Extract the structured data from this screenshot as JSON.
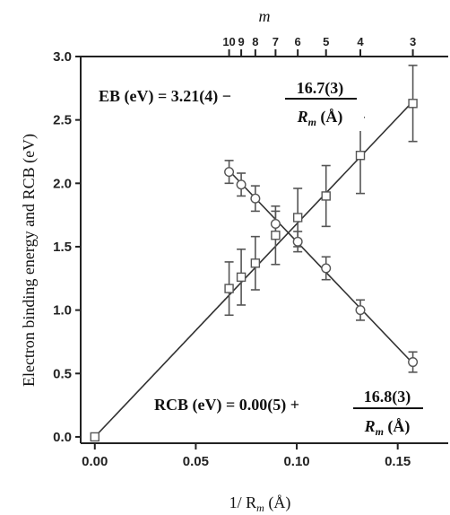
{
  "chart_data": {
    "type": "scatter",
    "title": "",
    "xlabel": "1/ R",
    "xlabel_sub": "m",
    "xlabel_unit": " (Å)",
    "ylabel": "Electron binding energy and RCB (eV)",
    "top_axis_label": "m",
    "xlim": [
      -0.007,
      0.175
    ],
    "ylim": [
      -0.05,
      3.0
    ],
    "x_ticks": [
      0.0,
      0.05,
      0.1,
      0.15
    ],
    "x_tick_labels": [
      "0.00",
      "0.05",
      "0.10",
      "0.15"
    ],
    "y_ticks": [
      0.0,
      0.5,
      1.0,
      1.5,
      2.0,
      2.5,
      3.0
    ],
    "y_tick_labels": [
      "0.0",
      "0.5",
      "1.0",
      "1.5",
      "2.0",
      "2.5",
      "3.0"
    ],
    "top_ticks": [
      {
        "label": "10",
        "x": 0.0665
      },
      {
        "label": "9",
        "x": 0.0725
      },
      {
        "label": "8",
        "x": 0.0795
      },
      {
        "label": "7",
        "x": 0.0895
      },
      {
        "label": "6",
        "x": 0.1005
      },
      {
        "label": "5",
        "x": 0.1145
      },
      {
        "label": "4",
        "x": 0.1315
      },
      {
        "label": "3",
        "x": 0.1575
      }
    ],
    "series": [
      {
        "marker": "square",
        "points": [
          {
            "x": 0.0,
            "y": 0.0,
            "err": 0
          },
          {
            "x": 0.0665,
            "y": 1.17,
            "err": 0.21
          },
          {
            "x": 0.0725,
            "y": 1.26,
            "err": 0.22
          },
          {
            "x": 0.0795,
            "y": 1.37,
            "err": 0.21
          },
          {
            "x": 0.0895,
            "y": 1.59,
            "err": 0.23
          },
          {
            "x": 0.1005,
            "y": 1.73,
            "err": 0.23
          },
          {
            "x": 0.1145,
            "y": 1.9,
            "err": 0.24
          },
          {
            "x": 0.1315,
            "y": 2.22,
            "err": 0.3
          },
          {
            "x": 0.1575,
            "y": 2.63,
            "err": 0.3
          }
        ],
        "fit": {
          "slope": 16.8,
          "intercept": 0.0,
          "x_range": [
            0.0,
            0.1575
          ]
        }
      },
      {
        "marker": "circle",
        "points": [
          {
            "x": 0.0665,
            "y": 2.09,
            "err": 0.09
          },
          {
            "x": 0.0725,
            "y": 1.99,
            "err": 0.09
          },
          {
            "x": 0.0795,
            "y": 1.88,
            "err": 0.1
          },
          {
            "x": 0.0895,
            "y": 1.68,
            "err": 0.1
          },
          {
            "x": 0.1005,
            "y": 1.54,
            "err": 0.08
          },
          {
            "x": 0.1145,
            "y": 1.33,
            "err": 0.09
          },
          {
            "x": 0.1315,
            "y": 1.0,
            "err": 0.08
          },
          {
            "x": 0.1575,
            "y": 0.59,
            "err": 0.08
          }
        ],
        "fit": {
          "slope": -16.7,
          "intercept": 3.21,
          "x_range": [
            0.0665,
            0.1575
          ]
        }
      }
    ],
    "annotations": [
      {
        "id": "eb",
        "lhs": "EB (eV) = 3.21(4) −",
        "numerator": "16.7(3)",
        "den_var": "R",
        "den_sub": "m",
        "den_unit": " (Å)"
      },
      {
        "id": "rcb",
        "lhs": "RCB (eV) = 0.00(5) +",
        "numerator": "16.8(3)",
        "den_var": "R",
        "den_sub": "m",
        "den_unit": " (Å)"
      }
    ]
  },
  "colors": {
    "axis": "#222222",
    "data": "#555555",
    "fit": "#333333",
    "faint": "#c8c8c8"
  }
}
